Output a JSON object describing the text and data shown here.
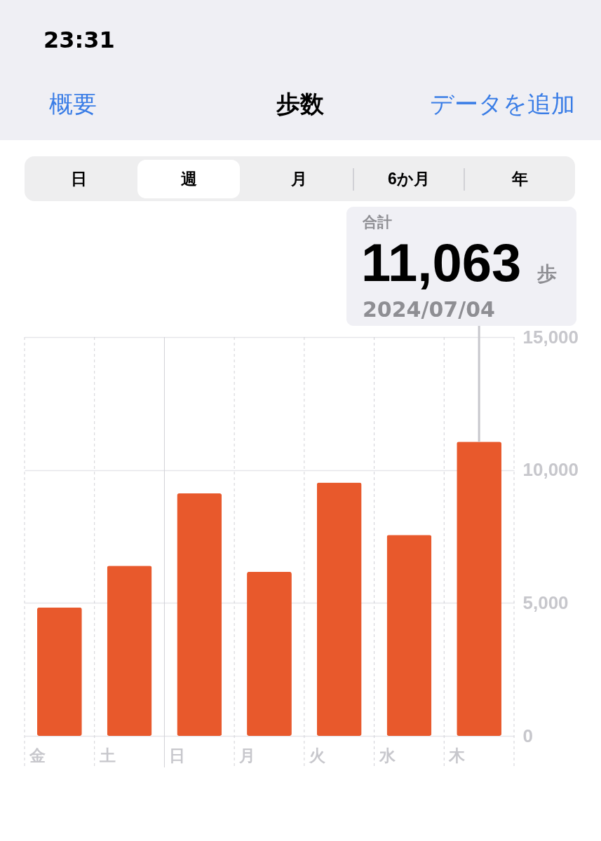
{
  "chart_data": {
    "type": "bar",
    "title": "歩数",
    "categories": [
      "金",
      "土",
      "日",
      "月",
      "火",
      "水",
      "木"
    ],
    "values": [
      4830,
      6400,
      9120,
      6170,
      9530,
      7560,
      11063
    ],
    "value_labels": [
      null,
      null,
      null,
      null,
      null,
      null,
      "11,063"
    ],
    "color": "#e8592c",
    "ylim": [
      0,
      15000
    ],
    "yticks": [
      0,
      {
        "value": 5000,
        "label": "5,000"
      },
      {
        "value": 10000,
        "label": "10,000"
      },
      {
        "value": 15000,
        "label": "15,000"
      }
    ],
    "grid": true,
    "ref_lines": [
      {
        "axis": "x",
        "value": "日",
        "line_style": "solid",
        "color": "#d1d1d6"
      }
    ],
    "annotations": [
      "23:31",
      "概要",
      "データを追加",
      "日",
      "週",
      "月",
      "6か月",
      "年",
      "合計",
      "歩",
      "2024/07/04"
    ]
  }
}
